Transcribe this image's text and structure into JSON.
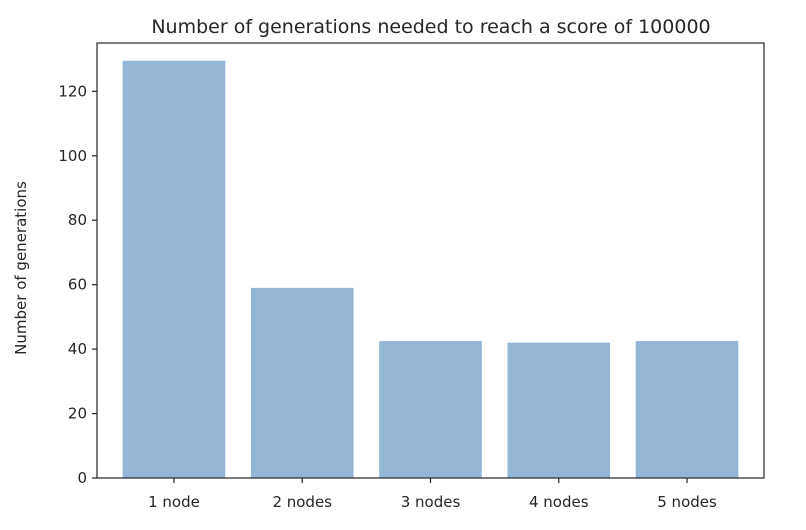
{
  "chart_data": {
    "type": "bar",
    "title": "Number of generations needed to reach a score of 100000",
    "xlabel": "",
    "ylabel": "Number of generations",
    "categories": [
      "1 node",
      "2 nodes",
      "3 nodes",
      "4 nodes",
      "5 nodes"
    ],
    "values": [
      129.5,
      59,
      42.5,
      42,
      42.5
    ],
    "yticks": [
      "0",
      "20",
      "40",
      "60",
      "80",
      "100",
      "120"
    ],
    "ylim": [
      0,
      135
    ],
    "bar_color": "#94b6d6",
    "grid": false,
    "legend": "none"
  }
}
